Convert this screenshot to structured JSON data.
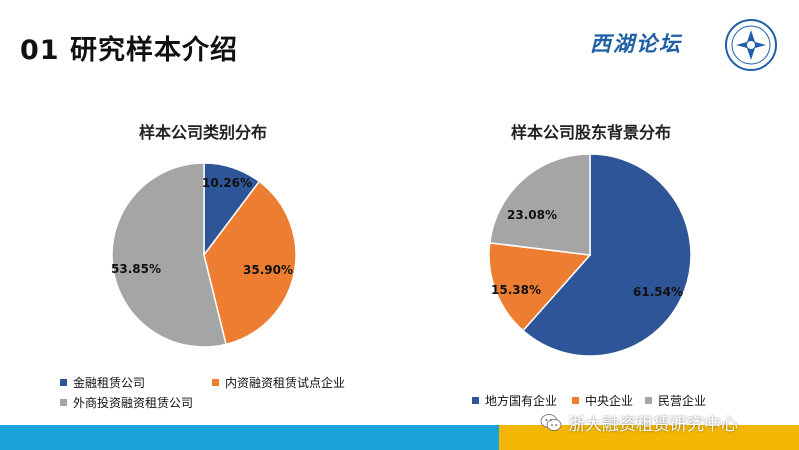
{
  "header": {
    "title": "01  研究样本介绍",
    "brand": "西湖论坛"
  },
  "colors": {
    "blue": "#2e5597",
    "orange": "#ed7d31",
    "gray": "#a5a5a5",
    "footer_blue": "#1aa3d9",
    "footer_yellow": "#f2b705"
  },
  "chart_data": [
    {
      "type": "pie",
      "title": "样本公司类别分布",
      "slices": [
        {
          "name": "金融租赁公司",
          "value": 10.26,
          "label": "10.26%",
          "color": "#2e5597"
        },
        {
          "name": "内资融资租赁试点企业",
          "value": 35.9,
          "label": "35.90%",
          "color": "#ed7d31"
        },
        {
          "name": "外商投资融资租赁公司",
          "value": 53.85,
          "label": "53.85%",
          "color": "#a5a5a5"
        }
      ]
    },
    {
      "type": "pie",
      "title": "样本公司股东背景分布",
      "slices": [
        {
          "name": "地方国有企业",
          "value": 61.54,
          "label": "61.54%",
          "color": "#2e5597"
        },
        {
          "name": "中央企业",
          "value": 15.38,
          "label": "15.38%",
          "color": "#ed7d31"
        },
        {
          "name": "民营企业",
          "value": 23.08,
          "label": "23.08%",
          "color": "#a5a5a5"
        }
      ]
    }
  ],
  "footer": {
    "watermark": "浙大融资租赁研究中心",
    "watermark_icon": "wechat-icon"
  }
}
